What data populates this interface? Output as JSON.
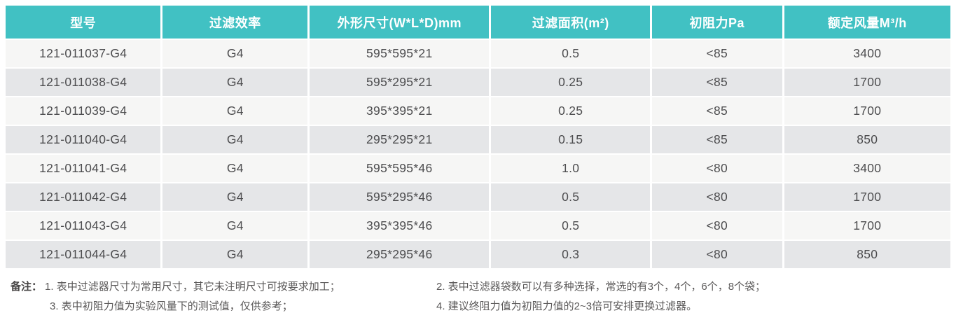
{
  "table": {
    "headers": [
      "型号",
      "过滤效率",
      "外形尺寸(W*L*D)mm",
      "过滤面积(m²)",
      "初阻力Pa",
      "额定风量M³/h"
    ],
    "rows": [
      [
        "121-011037-G4",
        "G4",
        "595*595*21",
        "0.5",
        "<85",
        "3400"
      ],
      [
        "121-011038-G4",
        "G4",
        "595*295*21",
        "0.25",
        "<85",
        "1700"
      ],
      [
        "121-011039-G4",
        "G4",
        "395*395*21",
        "0.25",
        "<85",
        "1700"
      ],
      [
        "121-011040-G4",
        "G4",
        "295*295*21",
        "0.15",
        "<85",
        "850"
      ],
      [
        "121-011041-G4",
        "G4",
        "595*595*46",
        "1.0",
        "<80",
        "3400"
      ],
      [
        "121-011042-G4",
        "G4",
        "595*295*46",
        "0.5",
        "<80",
        "1700"
      ],
      [
        "121-011043-G4",
        "G4",
        "395*395*46",
        "0.5",
        "<80",
        "1700"
      ],
      [
        "121-011044-G4",
        "G4",
        "295*295*46",
        "0.3",
        "<80",
        "850"
      ]
    ]
  },
  "notes": {
    "label": "备注：",
    "left": [
      "1. 表中过滤器尺寸为常用尺寸，其它未注明尺寸可按要求加工；",
      "3. 表中初阻力值为实验风量下的测试值，仅供参考；"
    ],
    "right": [
      "2. 表中过滤器袋数可以有多种选择，常选的有3个，4个，6个，8个袋；",
      "4. 建议终阻力值为初阻力值的2~3倍可安排更换过滤器。"
    ]
  },
  "colors": {
    "header_bg": "#41c1c3",
    "header_text": "#ffffff",
    "row_odd_bg": "#f6f6f5",
    "row_even_bg": "#e5e6e8",
    "cell_text": "#4d4d4f",
    "note_text": "#5a5858"
  }
}
